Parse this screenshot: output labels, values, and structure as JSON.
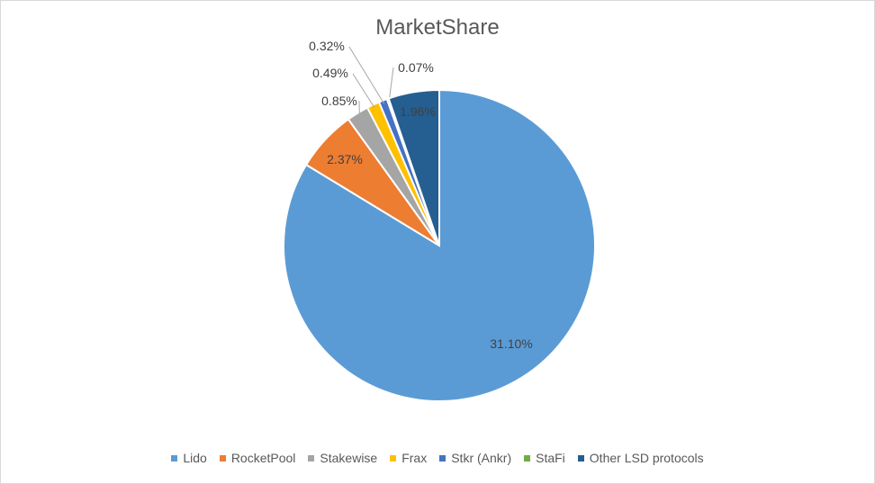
{
  "chart_data": {
    "type": "pie",
    "title": "MarketShare",
    "start_angle_deg": 90,
    "legend_position": "bottom",
    "slices": [
      {
        "name": "Lido",
        "value": 31.1,
        "label": "31.10%",
        "color": "#5b9bd5"
      },
      {
        "name": "RocketPool",
        "value": 2.37,
        "label": "2.37%",
        "color": "#ed7d31"
      },
      {
        "name": "Stakewise",
        "value": 0.85,
        "label": "0.85%",
        "color": "#a5a5a5"
      },
      {
        "name": "Frax",
        "value": 0.49,
        "label": "0.49%",
        "color": "#ffc000"
      },
      {
        "name": "Stkr (Ankr)",
        "value": 0.32,
        "label": "0.32%",
        "color": "#4472c4"
      },
      {
        "name": "StaFi",
        "value": 0.07,
        "label": "0.07%",
        "color": "#70ad47"
      },
      {
        "name": "Other LSD protocols",
        "value": 1.96,
        "label": "1.96%",
        "color": "#255e91"
      }
    ]
  }
}
